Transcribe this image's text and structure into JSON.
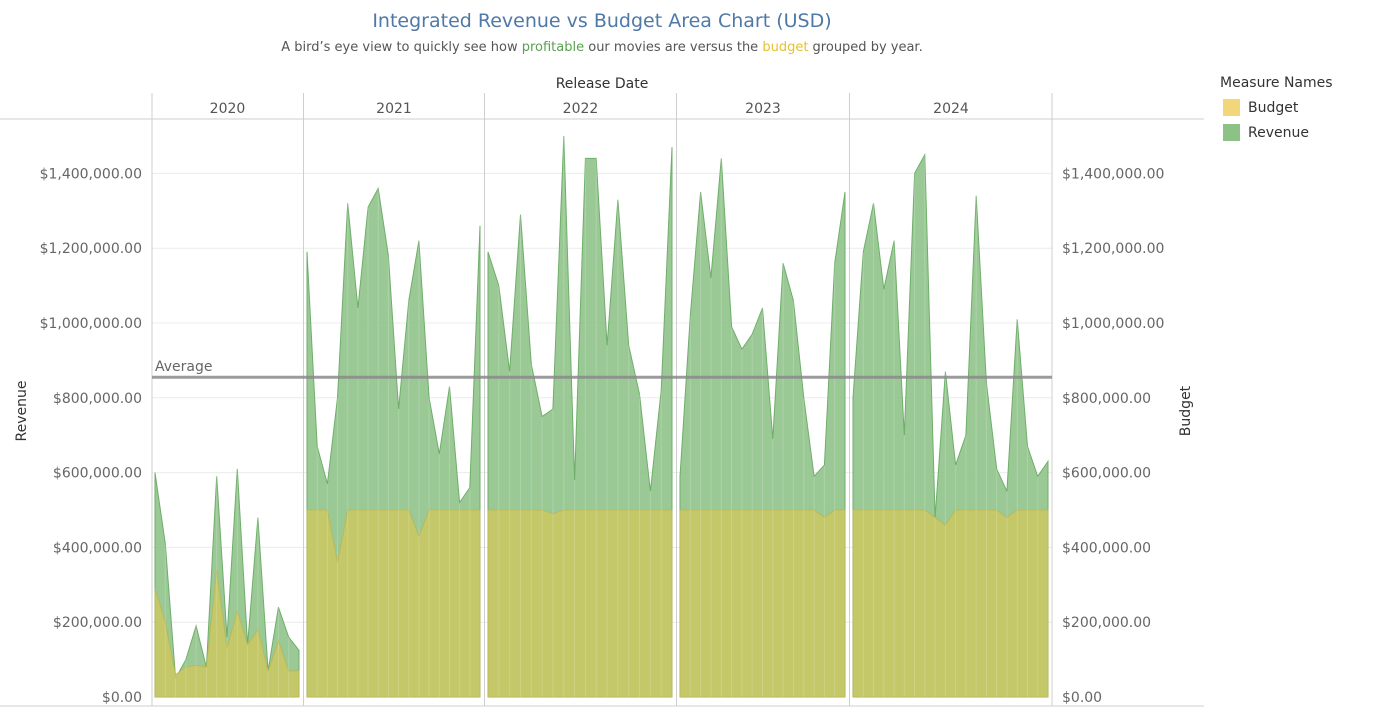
{
  "title": "Integrated Revenue vs Budget Area Chart (USD)",
  "subtitle": {
    "part1": "A bird’s eye view to quickly see how ",
    "highlight1": "profitable",
    "part2": " our movies are versus the ",
    "highlight2": "budget",
    "part3": " grouped by year."
  },
  "legend": {
    "title": "Measure Names",
    "items": [
      {
        "label": "Budget",
        "color": "#f1d67a"
      },
      {
        "label": "Revenue",
        "color": "#8dc287"
      }
    ]
  },
  "chart_data": {
    "type": "area",
    "column_header_title": "Release Date",
    "ylabel_left": "Revenue",
    "ylabel_right": "Budget",
    "y_ticks": [
      "$0.00",
      "$200,000.00",
      "$400,000.00",
      "$600,000.00",
      "$800,000.00",
      "$1,000,000.00",
      "$1,200,000.00",
      "$1,400,000.00"
    ],
    "ylim": [
      0,
      1560000
    ],
    "reference_line": {
      "label": "Average",
      "value": 855000
    },
    "colors": {
      "revenue": "#8dc287",
      "budget": "#cfc85e",
      "overlap": "#c6c866",
      "reference": "#8a8a8a"
    },
    "panels": [
      {
        "year": "2020",
        "revenue": [
          600000,
          410000,
          50000,
          100000,
          190000,
          80000,
          590000,
          160000,
          610000,
          140000,
          480000,
          70000,
          240000,
          160000,
          125000
        ],
        "budget": [
          290000,
          200000,
          60000,
          80000,
          85000,
          80000,
          340000,
          130000,
          230000,
          140000,
          180000,
          70000,
          150000,
          70000,
          70000
        ]
      },
      {
        "year": "2021",
        "revenue": [
          1190000,
          670000,
          570000,
          800000,
          1320000,
          1040000,
          1310000,
          1360000,
          1180000,
          770000,
          1060000,
          1220000,
          800000,
          650000,
          830000,
          520000,
          560000,
          1260000
        ],
        "budget": [
          500000,
          500000,
          500000,
          360000,
          500000,
          500000,
          500000,
          500000,
          500000,
          500000,
          500000,
          430000,
          500000,
          500000,
          500000,
          500000,
          500000,
          500000
        ]
      },
      {
        "year": "2022",
        "revenue": [
          1190000,
          1100000,
          870000,
          1290000,
          890000,
          750000,
          770000,
          1500000,
          580000,
          1440000,
          1440000,
          940000,
          1330000,
          940000,
          810000,
          550000,
          820000,
          1470000
        ],
        "budget": [
          500000,
          500000,
          500000,
          500000,
          500000,
          500000,
          490000,
          500000,
          500000,
          500000,
          500000,
          500000,
          500000,
          500000,
          500000,
          500000,
          500000,
          500000
        ]
      },
      {
        "year": "2023",
        "revenue": [
          590000,
          1020000,
          1350000,
          1120000,
          1440000,
          990000,
          930000,
          970000,
          1040000,
          690000,
          1160000,
          1060000,
          800000,
          590000,
          620000,
          1160000,
          1350000
        ],
        "budget": [
          500000,
          500000,
          500000,
          500000,
          500000,
          500000,
          500000,
          500000,
          500000,
          500000,
          500000,
          500000,
          500000,
          500000,
          480000,
          500000,
          500000
        ]
      },
      {
        "year": "2024",
        "revenue": [
          800000,
          1190000,
          1320000,
          1090000,
          1220000,
          700000,
          1400000,
          1450000,
          480000,
          870000,
          620000,
          700000,
          1340000,
          840000,
          610000,
          550000,
          1010000,
          670000,
          590000,
          630000
        ],
        "budget": [
          500000,
          500000,
          500000,
          500000,
          500000,
          500000,
          500000,
          500000,
          480000,
          460000,
          500000,
          500000,
          500000,
          500000,
          500000,
          480000,
          500000,
          500000,
          500000,
          500000
        ]
      }
    ]
  }
}
